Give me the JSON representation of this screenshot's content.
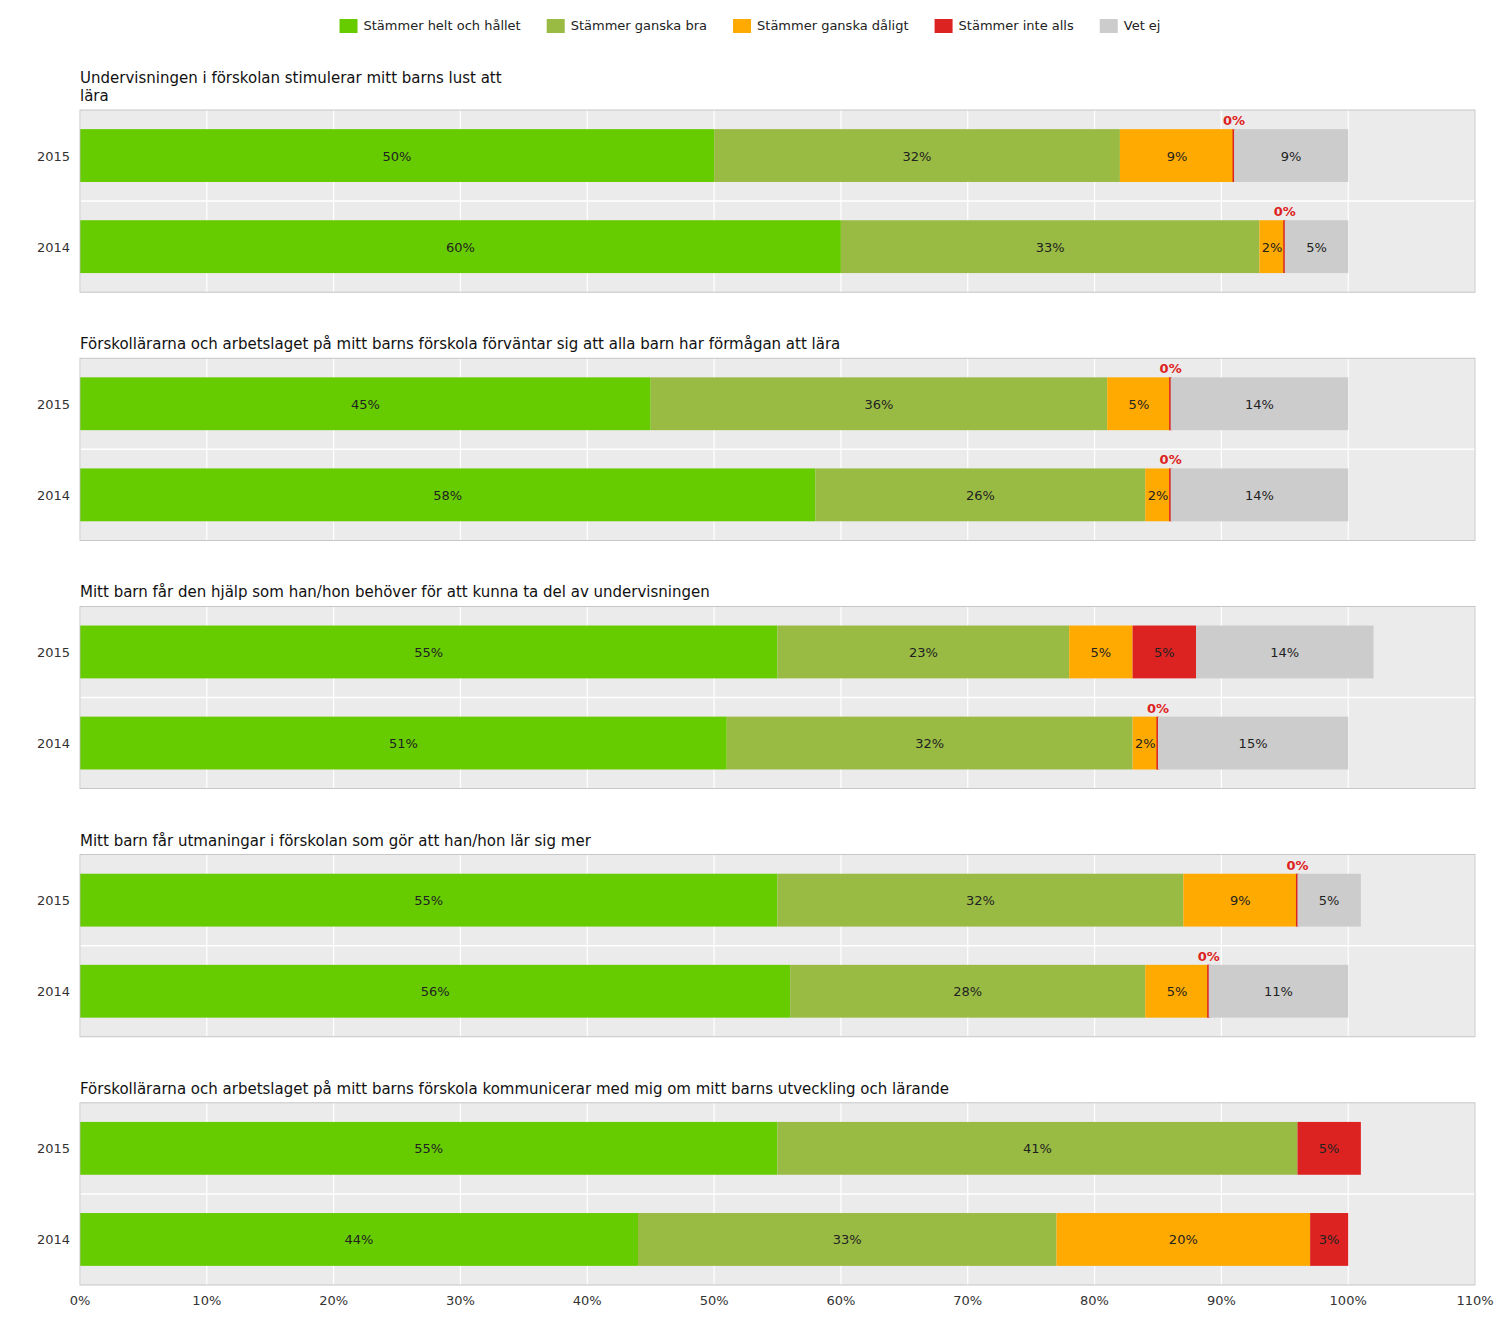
{
  "chart_data": [
    {
      "type": "bar",
      "orientation": "horizontal",
      "stacked": true,
      "data_labels": true,
      "grid": true,
      "legend": "top",
      "tick_labels": "y",
      "title": "Undervisningen i förskolan stimulerar mitt barns lust att\nlära",
      "categories": [
        "2015",
        "2014"
      ],
      "series": [
        {
          "name": "Stämmer helt och hållet",
          "color": "#66cc00",
          "values": [
            50,
            60
          ],
          "value_labels": [
            "50%",
            "60%"
          ]
        },
        {
          "name": "Stämmer ganska bra",
          "color": "#99bb44",
          "values": [
            32,
            33
          ],
          "value_labels": [
            "32%",
            "33%"
          ]
        },
        {
          "name": "Stämmer ganska dåligt",
          "color": "#ffaa00",
          "values": [
            9,
            2
          ],
          "value_labels": [
            "9%",
            "2%"
          ]
        },
        {
          "name": "Stämmer inte alls",
          "color": "#dd2222",
          "values": [
            0,
            0
          ],
          "value_labels": [
            "0%",
            "0%"
          ]
        },
        {
          "name": "Vet ej",
          "color": "#cccccc",
          "values": [
            9,
            5
          ],
          "value_labels": [
            "9%",
            "5%"
          ]
        }
      ],
      "xlim": [
        0,
        110
      ],
      "xticks": [
        {
          "value": 0,
          "label": "0%"
        },
        {
          "value": 10,
          "label": "10%"
        },
        {
          "value": 20,
          "label": "20%"
        },
        {
          "value": 30,
          "label": "30%"
        },
        {
          "value": 40,
          "label": "40%"
        },
        {
          "value": 50,
          "label": "50%"
        },
        {
          "value": 60,
          "label": "60%"
        },
        {
          "value": 70,
          "label": "70%"
        },
        {
          "value": 80,
          "label": "80%"
        },
        {
          "value": 90,
          "label": "90%"
        },
        {
          "value": 100,
          "label": "100%"
        },
        {
          "value": 110,
          "label": "110%"
        }
      ]
    },
    {
      "type": "bar",
      "orientation": "horizontal",
      "stacked": true,
      "data_labels": true,
      "grid": true,
      "tick_labels": "y",
      "title": "Förskollärarna och arbetslaget på mitt barns förskola förväntar sig att alla barn har förmågan att lära",
      "categories": [
        "2015",
        "2014"
      ],
      "series": [
        {
          "color": "#66cc00",
          "values": [
            45,
            58
          ],
          "value_labels": [
            "45%",
            "58%"
          ]
        },
        {
          "color": "#99bb44",
          "values": [
            36,
            26
          ],
          "value_labels": [
            "36%",
            "26%"
          ]
        },
        {
          "color": "#ffaa00",
          "values": [
            5,
            2
          ],
          "value_labels": [
            "5%",
            "2%"
          ]
        },
        {
          "color": "#dd2222",
          "values": [
            0,
            0
          ],
          "value_labels": [
            "0%",
            "0%"
          ]
        },
        {
          "color": "#cccccc",
          "values": [
            14,
            14
          ],
          "value_labels": [
            "14%",
            "14%"
          ]
        }
      ],
      "xlim": [
        0,
        110
      ],
      "xticks": [
        {
          "value": 0,
          "label": "0%"
        },
        {
          "value": 10,
          "label": "10%"
        },
        {
          "value": 20,
          "label": "20%"
        },
        {
          "value": 30,
          "label": "30%"
        },
        {
          "value": 40,
          "label": "40%"
        },
        {
          "value": 50,
          "label": "50%"
        },
        {
          "value": 60,
          "label": "60%"
        },
        {
          "value": 70,
          "label": "70%"
        },
        {
          "value": 80,
          "label": "80%"
        },
        {
          "value": 90,
          "label": "90%"
        },
        {
          "value": 100,
          "label": "100%"
        },
        {
          "value": 110,
          "label": "110%"
        }
      ]
    },
    {
      "type": "bar",
      "orientation": "horizontal",
      "stacked": true,
      "data_labels": true,
      "grid": true,
      "tick_labels": "y",
      "title": "Mitt barn får den hjälp som han/hon behöver för att kunna ta del av undervisningen",
      "categories": [
        "2015",
        "2014"
      ],
      "series": [
        {
          "color": "#66cc00",
          "values": [
            55,
            51
          ],
          "value_labels": [
            "55%",
            "51%"
          ]
        },
        {
          "color": "#99bb44",
          "values": [
            23,
            32
          ],
          "value_labels": [
            "23%",
            "32%"
          ]
        },
        {
          "color": "#ffaa00",
          "values": [
            5,
            2
          ],
          "value_labels": [
            "5%",
            "2%"
          ]
        },
        {
          "color": "#dd2222",
          "values": [
            5,
            0
          ],
          "value_labels": [
            "5%",
            "0%"
          ]
        },
        {
          "color": "#cccccc",
          "values": [
            14,
            15
          ],
          "value_labels": [
            "14%",
            "15%"
          ]
        }
      ],
      "xlim": [
        0,
        110
      ],
      "xticks": [
        {
          "value": 0,
          "label": "0%"
        },
        {
          "value": 10,
          "label": "10%"
        },
        {
          "value": 20,
          "label": "20%"
        },
        {
          "value": 30,
          "label": "30%"
        },
        {
          "value": 40,
          "label": "40%"
        },
        {
          "value": 50,
          "label": "50%"
        },
        {
          "value": 60,
          "label": "60%"
        },
        {
          "value": 70,
          "label": "70%"
        },
        {
          "value": 80,
          "label": "80%"
        },
        {
          "value": 90,
          "label": "90%"
        },
        {
          "value": 100,
          "label": "100%"
        },
        {
          "value": 110,
          "label": "110%"
        }
      ]
    },
    {
      "type": "bar",
      "orientation": "horizontal",
      "stacked": true,
      "data_labels": true,
      "grid": true,
      "tick_labels": "y",
      "title": "Mitt barn får utmaningar i förskolan som gör att han/hon lär sig mer",
      "categories": [
        "2015",
        "2014"
      ],
      "series": [
        {
          "color": "#66cc00",
          "values": [
            55,
            56
          ],
          "value_labels": [
            "55%",
            "56%"
          ]
        },
        {
          "color": "#99bb44",
          "values": [
            32,
            28
          ],
          "value_labels": [
            "32%",
            "28%"
          ]
        },
        {
          "color": "#ffaa00",
          "values": [
            9,
            5
          ],
          "value_labels": [
            "9%",
            "5%"
          ]
        },
        {
          "color": "#dd2222",
          "values": [
            0,
            0
          ],
          "value_labels": [
            "0%",
            "0%"
          ]
        },
        {
          "color": "#cccccc",
          "values": [
            5,
            11
          ],
          "value_labels": [
            "5%",
            "11%"
          ]
        }
      ],
      "xlim": [
        0,
        110
      ],
      "xticks": [
        {
          "value": 0,
          "label": "0%"
        },
        {
          "value": 10,
          "label": "10%"
        },
        {
          "value": 20,
          "label": "20%"
        },
        {
          "value": 30,
          "label": "30%"
        },
        {
          "value": 40,
          "label": "40%"
        },
        {
          "value": 50,
          "label": "50%"
        },
        {
          "value": 60,
          "label": "60%"
        },
        {
          "value": 70,
          "label": "70%"
        },
        {
          "value": 80,
          "label": "80%"
        },
        {
          "value": 90,
          "label": "90%"
        },
        {
          "value": 100,
          "label": "100%"
        },
        {
          "value": 110,
          "label": "110%"
        }
      ]
    },
    {
      "type": "bar",
      "orientation": "horizontal",
      "stacked": true,
      "data_labels": true,
      "grid": true,
      "title": "Förskollärarna och arbetslaget på mitt barns förskola kommunicerar med mig om mitt barns utveckling och lärande",
      "categories": [
        "2015",
        "2014"
      ],
      "series": [
        {
          "color": "#66cc00",
          "values": [
            55,
            44
          ],
          "value_labels": [
            "55%",
            "44%"
          ]
        },
        {
          "color": "#99bb44",
          "values": [
            41,
            33
          ],
          "value_labels": [
            "41%",
            "33%"
          ]
        },
        {
          "color": "#ffaa00",
          "values": [
            0,
            20
          ],
          "value_labels": [
            null,
            "20%"
          ]
        },
        {
          "color": "#dd2222",
          "values": [
            5,
            3
          ],
          "value_labels": [
            "5%",
            "3%"
          ]
        },
        {
          "color": "#cccccc",
          "values": [
            0,
            0
          ],
          "value_labels": [
            null,
            null
          ]
        }
      ],
      "xlim": [
        0,
        110
      ],
      "xticks": [
        {
          "value": 0,
          "label": "0%"
        },
        {
          "value": 10,
          "label": "10%"
        },
        {
          "value": 20,
          "label": "20%"
        },
        {
          "value": 30,
          "label": "30%"
        },
        {
          "value": 40,
          "label": "40%"
        },
        {
          "value": 50,
          "label": "50%"
        },
        {
          "value": 60,
          "label": "60%"
        },
        {
          "value": 70,
          "label": "70%"
        },
        {
          "value": 80,
          "label": "80%"
        },
        {
          "value": 90,
          "label": "90%"
        },
        {
          "value": 100,
          "label": "100%"
        },
        {
          "value": 110,
          "label": "110%"
        }
      ]
    }
  ]
}
